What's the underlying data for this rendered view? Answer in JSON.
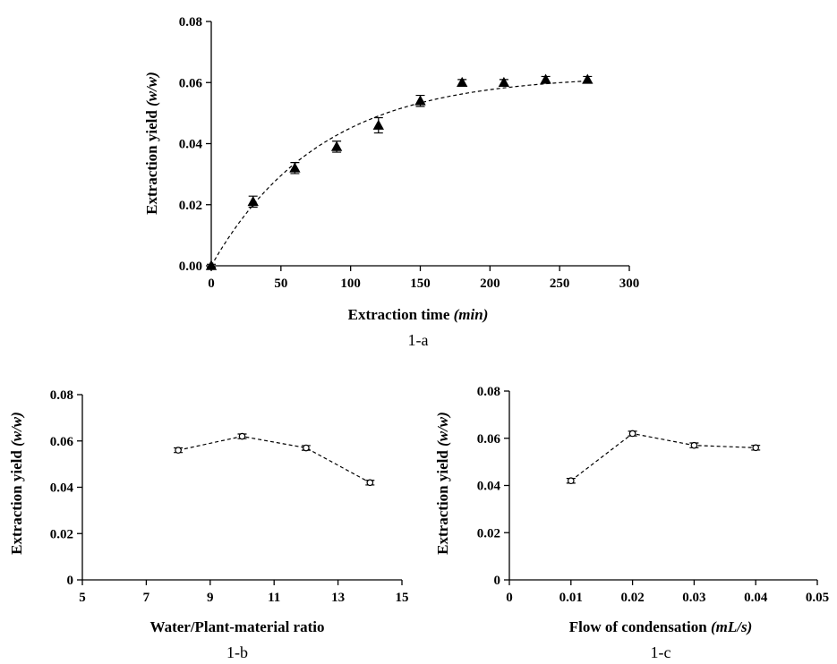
{
  "chart_data": [
    {
      "type": "scatter",
      "caption": "1-a",
      "xlabel": "Extraction time",
      "xlabel_unit": "(min)",
      "ylabel": "Extraction yield",
      "ylabel_unit": "(w/w)",
      "xlim": [
        0,
        300
      ],
      "ylim": [
        0,
        0.08
      ],
      "x_ticks": [
        "0",
        "50",
        "100",
        "150",
        "200",
        "250",
        "300"
      ],
      "y_ticks": [
        "0.00",
        "0.02",
        "0.04",
        "0.06",
        "0.08"
      ],
      "grid": false,
      "marker": "filled-triangle",
      "trend_line": "dashed",
      "x": [
        0,
        30,
        60,
        90,
        120,
        150,
        180,
        210,
        240,
        270
      ],
      "y": [
        0.0,
        0.021,
        0.032,
        0.039,
        0.046,
        0.054,
        0.06,
        0.06,
        0.061,
        0.061
      ],
      "error": [
        0.0005,
        0.0018,
        0.0018,
        0.0018,
        0.0025,
        0.0018,
        0.001,
        0.001,
        0.001,
        0.001
      ]
    },
    {
      "type": "line",
      "caption": "1-b",
      "xlabel": "Water/Plant-material ratio",
      "xlabel_unit": "",
      "ylabel": "Extraction yield",
      "ylabel_unit": "(w/w)",
      "xlim": [
        5,
        15
      ],
      "ylim": [
        0,
        0.08
      ],
      "x_ticks": [
        "5",
        "7",
        "9",
        "11",
        "13",
        "15"
      ],
      "y_ticks": [
        "0",
        "0.02",
        "0.04",
        "0.06",
        "0.08"
      ],
      "grid": false,
      "marker": "open-circle",
      "line_style": "dashed",
      "x": [
        8,
        10,
        12,
        14
      ],
      "y": [
        0.056,
        0.062,
        0.057,
        0.042
      ],
      "error": [
        0.001,
        0.001,
        0.001,
        0.001
      ]
    },
    {
      "type": "line",
      "caption": "1-c",
      "xlabel": "Flow  of condensation",
      "xlabel_unit": "(mL/s)",
      "ylabel": "Extraction yield",
      "ylabel_unit": "(w/w)",
      "xlim": [
        0,
        0.05
      ],
      "ylim": [
        0,
        0.08
      ],
      "x_ticks": [
        "0",
        "0.01",
        "0.02",
        "0.03",
        "0.04",
        "0.05"
      ],
      "y_ticks": [
        "0",
        "0.02",
        "0.04",
        "0.06",
        "0.08"
      ],
      "grid": false,
      "marker": "open-circle",
      "line_style": "dashed",
      "x": [
        0.01,
        0.02,
        0.03,
        0.04
      ],
      "y": [
        0.042,
        0.062,
        0.057,
        0.056
      ],
      "error": [
        0.001,
        0.001,
        0.001,
        0.001
      ]
    }
  ]
}
